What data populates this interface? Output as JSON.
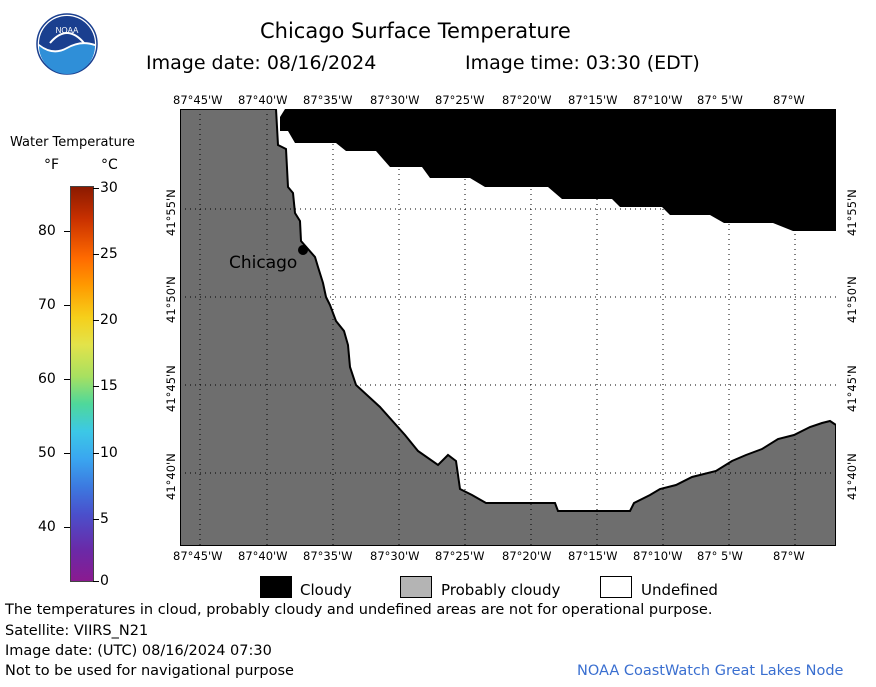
{
  "header": {
    "title": "Chicago Surface Temperature",
    "date_line": "Image date: 08/16/2024",
    "time_line": "Image time: 03:30 (EDT)",
    "logo_text": "NOAA"
  },
  "map": {
    "top_longitudes": [
      "87°45'W",
      "87°40'W",
      "87°35'W",
      "87°30'W",
      "87°25'W",
      "87°20'W",
      "87°15'W",
      "87°10'W",
      "87° 5'W",
      "87°W"
    ],
    "bottom_longitudes": [
      "87°45'W",
      "87°40'W",
      "87°35'W",
      "87°30'W",
      "87°25'W",
      "87°20'W",
      "87°15'W",
      "87°10'W",
      "87° 5'W",
      "87°W"
    ],
    "left_latitudes": [
      "41°55'N",
      "41°50'N",
      "41°45'N",
      "41°40'N"
    ],
    "right_latitudes": [
      "41°55'N",
      "41°50'N",
      "41°45'N",
      "41°40'N"
    ],
    "city_label": "Chicago",
    "colors": {
      "land": "#6e6e6e",
      "cloud": "#000000",
      "undefined": "#ffffff",
      "probably_cloudy": "#b4b4b4"
    }
  },
  "colorbar": {
    "title": "Water Temperature",
    "unit_f": "°F",
    "unit_c": "°C",
    "f_ticks": [
      "80",
      "70",
      "60",
      "50",
      "40"
    ],
    "c_ticks": [
      "30",
      "25",
      "20",
      "15",
      "10",
      "5",
      "0"
    ]
  },
  "legend": {
    "cloudy": "Cloudy",
    "probably_cloudy": "Probably cloudy",
    "undefined": "Undefined"
  },
  "footer": {
    "disclaimer": "The temperatures in cloud, probably cloudy and undefined areas are not for operational purpose.",
    "satellite": "Satellite: VIIRS_N21",
    "utc_date": "Image date: (UTC) 08/16/2024  07:30",
    "nav_warning": "Not to be used for navigational purpose",
    "credit": "NOAA CoastWatch Great Lakes Node"
  }
}
